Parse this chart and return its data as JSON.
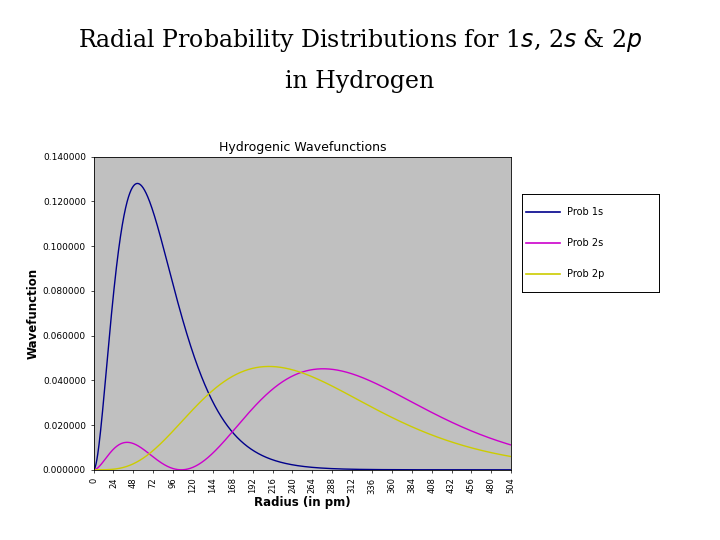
{
  "chart_title": "Hydrogenic Wavefunctions",
  "xlabel": "Radius (in pm)",
  "ylabel": "Wavefunction",
  "ylim": [
    0.0,
    0.14
  ],
  "xlim": [
    0,
    504
  ],
  "yticks": [
    0.0,
    0.02,
    0.04,
    0.06,
    0.08,
    0.1,
    0.12,
    0.14
  ],
  "ytick_labels": [
    "0.000000",
    "0.020000",
    "0.040000",
    "0.060000",
    "0.080000",
    "0.100000",
    "0.120000",
    "0.140000"
  ],
  "xticks": [
    0,
    24,
    48,
    72,
    96,
    120,
    144,
    168,
    192,
    216,
    240,
    264,
    288,
    312,
    336,
    360,
    384,
    408,
    432,
    456,
    480,
    504
  ],
  "color_1s": "#00008B",
  "color_2s": "#CC00CC",
  "color_2p": "#CCCC00",
  "plot_bg": "#C0C0C0",
  "fig_bg": "#FFFFFF",
  "legend_labels": [
    "Prob 1s",
    "Prob 2s",
    "Prob 2p"
  ],
  "a0_pm": 52.9,
  "peak_1s": 0.128
}
